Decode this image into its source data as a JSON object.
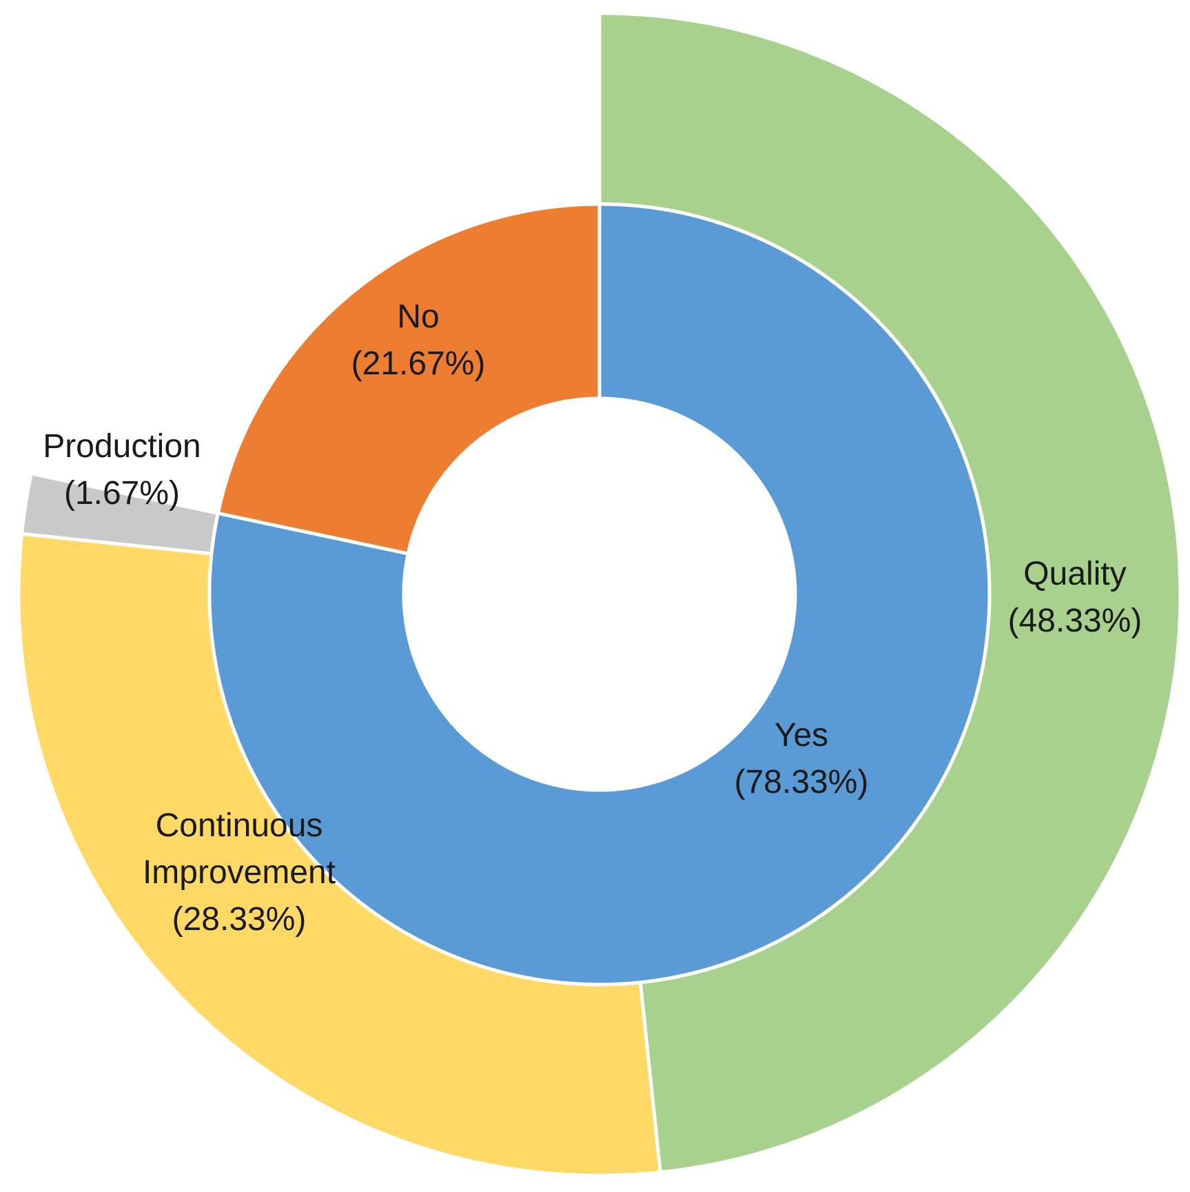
{
  "chart_data": {
    "type": "pie",
    "variant": "sunburst",
    "title": "",
    "rings": [
      {
        "name": "inner",
        "slices": [
          {
            "label": "Yes",
            "value": 78.33,
            "value_label": "(78.33%)",
            "color": "#5B9BD5"
          },
          {
            "label": "No",
            "value": 21.67,
            "value_label": "(21.67%)",
            "color": "#ED7D31"
          }
        ]
      },
      {
        "name": "outer",
        "slices": [
          {
            "label": "Quality",
            "value": 48.33,
            "value_label": "(48.33%)",
            "color": "#A9D18E",
            "parent": "Yes"
          },
          {
            "label": "Continuous Improvement",
            "label_lines": [
              "Continuous",
              "Improvement"
            ],
            "value": 28.33,
            "value_label": "(28.33%)",
            "color": "#FFD966",
            "parent": "Yes"
          },
          {
            "label": "Production",
            "value": 1.67,
            "value_label": "(1.67%)",
            "color": "#C9C9C9",
            "parent": "Yes"
          }
        ]
      }
    ],
    "legend": "none"
  }
}
